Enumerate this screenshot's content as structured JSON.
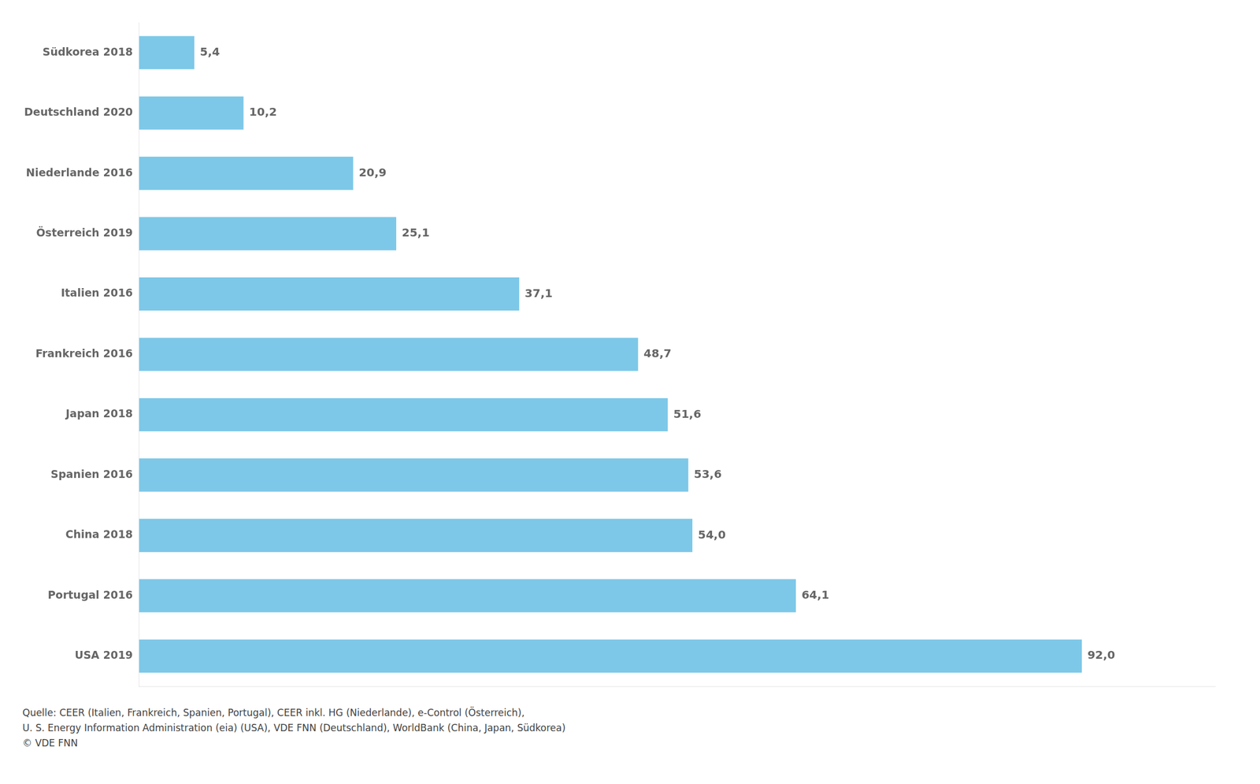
{
  "chart_data": {
    "type": "bar",
    "orientation": "horizontal",
    "categories": [
      "Südkorea 2018",
      "Deutschland 2020",
      "Niederlande 2016",
      "Österreich 2019",
      "Italien 2016",
      "Frankreich 2016",
      "Japan 2018",
      "Spanien 2016",
      "China 2018",
      "Portugal 2016",
      "USA 2019"
    ],
    "values": [
      5.4,
      10.2,
      20.9,
      25.1,
      37.1,
      48.7,
      51.6,
      53.6,
      54.0,
      64.1,
      92.0
    ],
    "value_labels": [
      "5,4",
      "10,2",
      "20,9",
      "25,1",
      "37,1",
      "48,7",
      "51,6",
      "53,6",
      "54,0",
      "64,1",
      "92,0"
    ],
    "data_labels": true,
    "color": "#7DC8E8",
    "xlim": [
      0,
      105
    ],
    "tick_labels": "y",
    "grid": false,
    "annotations": [
      "Quelle: CEER (Italien, Frankreich, Spanien, Portugal), CEER inkl. HG (Niederlande), e-Control (Österreich),",
      "U. S. Energy Information Administration (eia) (USA), VDE FNN (Deutschland), WorldBank (China, Japan, Südkorea)",
      "© VDE FNN"
    ]
  }
}
